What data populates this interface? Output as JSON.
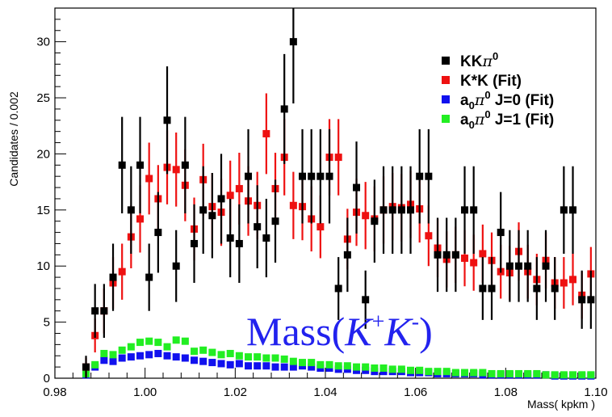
{
  "chart_data": {
    "type": "scatter",
    "xlabel": "Mass( kpkm )",
    "ylabel": "Candidates / 0.002",
    "xlim": [
      0.98,
      1.1
    ],
    "ylim": [
      0,
      33
    ],
    "x_ticks": [
      "0.98",
      "1.00",
      "1.02",
      "1.04",
      "1.06",
      "1.08",
      "1.10"
    ],
    "y_ticks": [
      "0",
      "5",
      "10",
      "15",
      "20",
      "25",
      "30"
    ],
    "legend_position": "top-right",
    "annotation": {
      "text": "Mass(",
      "k1": "K",
      "sup1": "+",
      "k2": "K",
      "sup2": "-",
      "close": ")"
    },
    "grid": false,
    "series": [
      {
        "name": "KKπ⁰",
        "legend": {
          "base": "KK",
          "greek": "π",
          "sup": "0",
          "rest": ""
        },
        "color": "#000000",
        "errors": true,
        "x": [
          0.9869,
          0.9889,
          0.9909,
          0.9929,
          0.9949,
          0.9969,
          0.9989,
          1.0009,
          1.0029,
          1.0049,
          1.0069,
          1.0089,
          1.0109,
          1.0129,
          1.0149,
          1.0169,
          1.0189,
          1.0209,
          1.0229,
          1.0249,
          1.0269,
          1.0289,
          1.0309,
          1.0329,
          1.0349,
          1.0369,
          1.0389,
          1.0409,
          1.0429,
          1.0449,
          1.0469,
          1.0489,
          1.0509,
          1.0529,
          1.0549,
          1.0569,
          1.0589,
          1.0609,
          1.0629,
          1.0649,
          1.0669,
          1.0689,
          1.0709,
          1.0729,
          1.0749,
          1.0769,
          1.0789,
          1.0809,
          1.0829,
          1.0849,
          1.0869,
          1.0889,
          1.0909,
          1.0929,
          1.0949,
          1.0969,
          1.0989
        ],
        "y": [
          1,
          6,
          6,
          9,
          19,
          15,
          19,
          9,
          13,
          23,
          10,
          19,
          12,
          15,
          14.5,
          16,
          12.5,
          12,
          18,
          13.5,
          12.5,
          14,
          24,
          30,
          18,
          18,
          18,
          18,
          8,
          11,
          17,
          7,
          14,
          15,
          15,
          15,
          15,
          18,
          18,
          11,
          11,
          11,
          15,
          15,
          8,
          8,
          13,
          10,
          10,
          10,
          8,
          10,
          8,
          15,
          15,
          7,
          7
        ],
        "err": [
          1,
          2.4,
          2.4,
          3,
          4.3,
          3.9,
          4.3,
          3,
          3.6,
          4.8,
          3.2,
          4.3,
          3.5,
          3.9,
          3.8,
          4,
          3.5,
          3.5,
          4.2,
          3.7,
          3.5,
          3.7,
          4.9,
          5.5,
          4.2,
          4.2,
          4.2,
          4.2,
          2.8,
          3.3,
          4.1,
          2.6,
          3.7,
          3.9,
          3.9,
          3.9,
          3.9,
          4.2,
          4.2,
          3.3,
          3.3,
          3.3,
          3.9,
          3.9,
          2.8,
          2.8,
          3.6,
          3.2,
          3.2,
          3.2,
          2.8,
          3.2,
          2.8,
          3.9,
          3.9,
          2.6,
          2.6
        ]
      },
      {
        "name": "K*K (Fit)",
        "legend": {
          "base": "K*K (Fit)",
          "greek": "",
          "sup": "",
          "rest": ""
        },
        "color": "#ee1111",
        "errors": true,
        "x": [
          0.9869,
          0.9889,
          0.9909,
          0.9929,
          0.9949,
          0.9969,
          0.9989,
          1.0009,
          1.0029,
          1.0049,
          1.0069,
          1.0089,
          1.0109,
          1.0129,
          1.0149,
          1.0169,
          1.0189,
          1.0209,
          1.0229,
          1.0249,
          1.0269,
          1.0289,
          1.0309,
          1.0329,
          1.0349,
          1.0369,
          1.0389,
          1.0409,
          1.0429,
          1.0449,
          1.0469,
          1.0489,
          1.0509,
          1.0529,
          1.0549,
          1.0569,
          1.0589,
          1.0609,
          1.0629,
          1.0649,
          1.0669,
          1.0689,
          1.0709,
          1.0729,
          1.0749,
          1.0769,
          1.0789,
          1.0809,
          1.0829,
          1.0849,
          1.0869,
          1.0889,
          1.0909,
          1.0929,
          1.0949,
          1.0969,
          1.0989
        ],
        "y": [
          1,
          3.8,
          6,
          8.5,
          9.5,
          12.6,
          14.2,
          17.8,
          16,
          18.8,
          18.6,
          17.2,
          13.3,
          17.7,
          15.3,
          14.8,
          16.3,
          16.9,
          15.8,
          15.4,
          21.8,
          16.9,
          19.7,
          15.4,
          15.3,
          14.2,
          13.5,
          19.7,
          19.7,
          12.4,
          14.8,
          14.5,
          14.2,
          15,
          15.3,
          15.2,
          15.5,
          15.1,
          12.7,
          11.6,
          10.6,
          11,
          10.7,
          10.3,
          11.1,
          10.5,
          9.5,
          9.4,
          11.3,
          9.5,
          8.8,
          10.5,
          8.5,
          8.5,
          8.8,
          7.4,
          9.3
        ],
        "err": [
          0.8,
          1.5,
          2,
          2.3,
          2.5,
          2.8,
          3,
          3.2,
          3,
          3.3,
          3.3,
          3.2,
          2.8,
          3.2,
          3,
          3,
          3.1,
          3.2,
          3.1,
          3,
          3.6,
          3.2,
          3.4,
          3,
          3,
          2.9,
          2.8,
          3.4,
          3.4,
          2.7,
          3,
          3,
          2.9,
          3,
          3,
          3,
          3,
          3,
          2.7,
          2.6,
          2.5,
          2.5,
          2.5,
          2.5,
          2.6,
          2.5,
          2.4,
          2.4,
          2.6,
          2.4,
          2.3,
          2.5,
          2.3,
          2.3,
          2.3,
          2.1,
          2.4
        ]
      },
      {
        "name": "a₀π⁰ J=0 (Fit)",
        "legend": {
          "base": "a",
          "sub": "0",
          "greek": "π",
          "sup": "0",
          "rest": " J=0 (Fit)"
        },
        "color": "#1111ee",
        "errors": false,
        "x": [
          0.9869,
          0.9889,
          0.9909,
          0.9929,
          0.9949,
          0.9969,
          0.9989,
          1.0009,
          1.0029,
          1.0049,
          1.0069,
          1.0089,
          1.0109,
          1.0129,
          1.0149,
          1.0169,
          1.0189,
          1.0209,
          1.0229,
          1.0249,
          1.0269,
          1.0289,
          1.0309,
          1.0329,
          1.0349,
          1.0369,
          1.0389,
          1.0409,
          1.0429,
          1.0449,
          1.0469,
          1.0489,
          1.0509,
          1.0529,
          1.0549,
          1.0569,
          1.0589,
          1.0609,
          1.0629,
          1.0649,
          1.0669,
          1.0689,
          1.0709,
          1.0729,
          1.0749,
          1.0769,
          1.0789,
          1.0809,
          1.0829,
          1.0849,
          1.0869,
          1.0889,
          1.0909,
          1.0929,
          1.0949,
          1.0969,
          1.0989
        ],
        "y": [
          0.3,
          1,
          1.6,
          1.5,
          1.8,
          1.9,
          2,
          2.1,
          2.2,
          2,
          1.9,
          1.8,
          1.6,
          1.5,
          1.4,
          1.3,
          1.2,
          1.3,
          1.1,
          1.1,
          1.1,
          1,
          1,
          1,
          1.1,
          1,
          0.9,
          0.9,
          0.8,
          0.8,
          0.7,
          0.7,
          0.6,
          0.6,
          0.6,
          0.6,
          0.5,
          0.5,
          0.5,
          0.4,
          0.4,
          0.4,
          0.4,
          0.4,
          0.3,
          0.3,
          0.3,
          0.3,
          0.3,
          0.3,
          0.3,
          0.3,
          0.2,
          0.2,
          0.2,
          0.2,
          0.2
        ]
      },
      {
        "name": "a₀π⁰ J=1 (Fit)",
        "legend": {
          "base": "a",
          "sub": "0",
          "greek": "π",
          "sup": "0",
          "rest": " J=1 (Fit)"
        },
        "color": "#22ee22",
        "errors": false,
        "x": [
          0.9869,
          0.9889,
          0.9909,
          0.9929,
          0.9949,
          0.9969,
          0.9989,
          1.0009,
          1.0029,
          1.0049,
          1.0069,
          1.0089,
          1.0109,
          1.0129,
          1.0149,
          1.0169,
          1.0189,
          1.0209,
          1.0229,
          1.0249,
          1.0269,
          1.0289,
          1.0309,
          1.0329,
          1.0349,
          1.0369,
          1.0389,
          1.0409,
          1.0429,
          1.0449,
          1.0469,
          1.0489,
          1.0509,
          1.0529,
          1.0549,
          1.0569,
          1.0589,
          1.0609,
          1.0629,
          1.0649,
          1.0669,
          1.0689,
          1.0709,
          1.0729,
          1.0749,
          1.0769,
          1.0789,
          1.0809,
          1.0829,
          1.0849,
          1.0869,
          1.0889,
          1.0909,
          1.0929,
          1.0949,
          1.0969,
          1.0989
        ],
        "y": [
          0.4,
          1.2,
          2.2,
          2.1,
          2.5,
          2.8,
          3.2,
          3.3,
          3.2,
          2.8,
          3.4,
          3.3,
          2.4,
          2.5,
          2.3,
          2.1,
          2.2,
          2,
          1.9,
          1.9,
          1.8,
          1.8,
          1.7,
          1.5,
          1.4,
          1.4,
          1.2,
          1.2,
          1.1,
          1.1,
          1,
          1,
          0.9,
          0.9,
          0.8,
          0.8,
          0.7,
          0.7,
          0.6,
          0.6,
          0.6,
          0.5,
          0.5,
          0.5,
          0.5,
          0.4,
          0.4,
          0.4,
          0.4,
          0.4,
          0.4,
          0.3,
          0.3,
          0.3,
          0.3,
          0.3,
          0.3
        ]
      }
    ]
  }
}
